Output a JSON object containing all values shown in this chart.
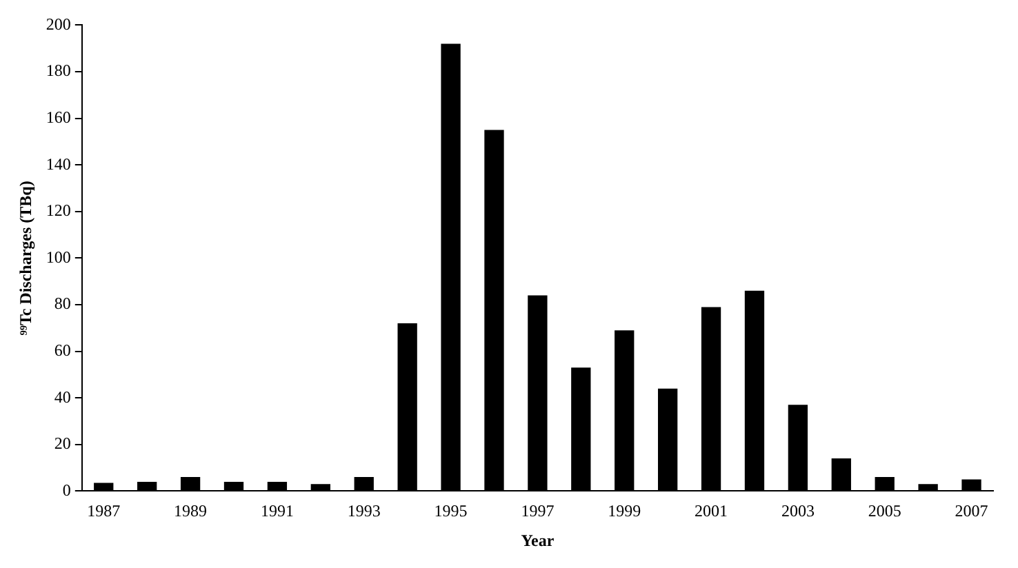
{
  "chart_data": {
    "type": "bar",
    "xlabel": "Year",
    "ylabel": "⁹⁹Tc Discharges (TBq)",
    "categories": [
      "1987",
      null,
      "1989",
      null,
      "1991",
      null,
      "1993",
      null,
      "1995",
      null,
      "1997",
      null,
      "1999",
      null,
      "2001",
      null,
      "2003",
      null,
      "2005",
      null,
      "2007"
    ],
    "values": [
      3.5,
      4,
      6,
      4,
      4,
      3,
      6,
      72,
      192,
      155,
      84,
      53,
      69,
      44,
      79,
      86,
      37,
      14,
      6,
      3,
      5
    ],
    "color": "#000000",
    "ylim": [
      0,
      200
    ],
    "yticks": [
      0,
      20,
      40,
      60,
      80,
      100,
      120,
      140,
      160,
      180,
      200
    ],
    "grid": false,
    "legend": false
  }
}
